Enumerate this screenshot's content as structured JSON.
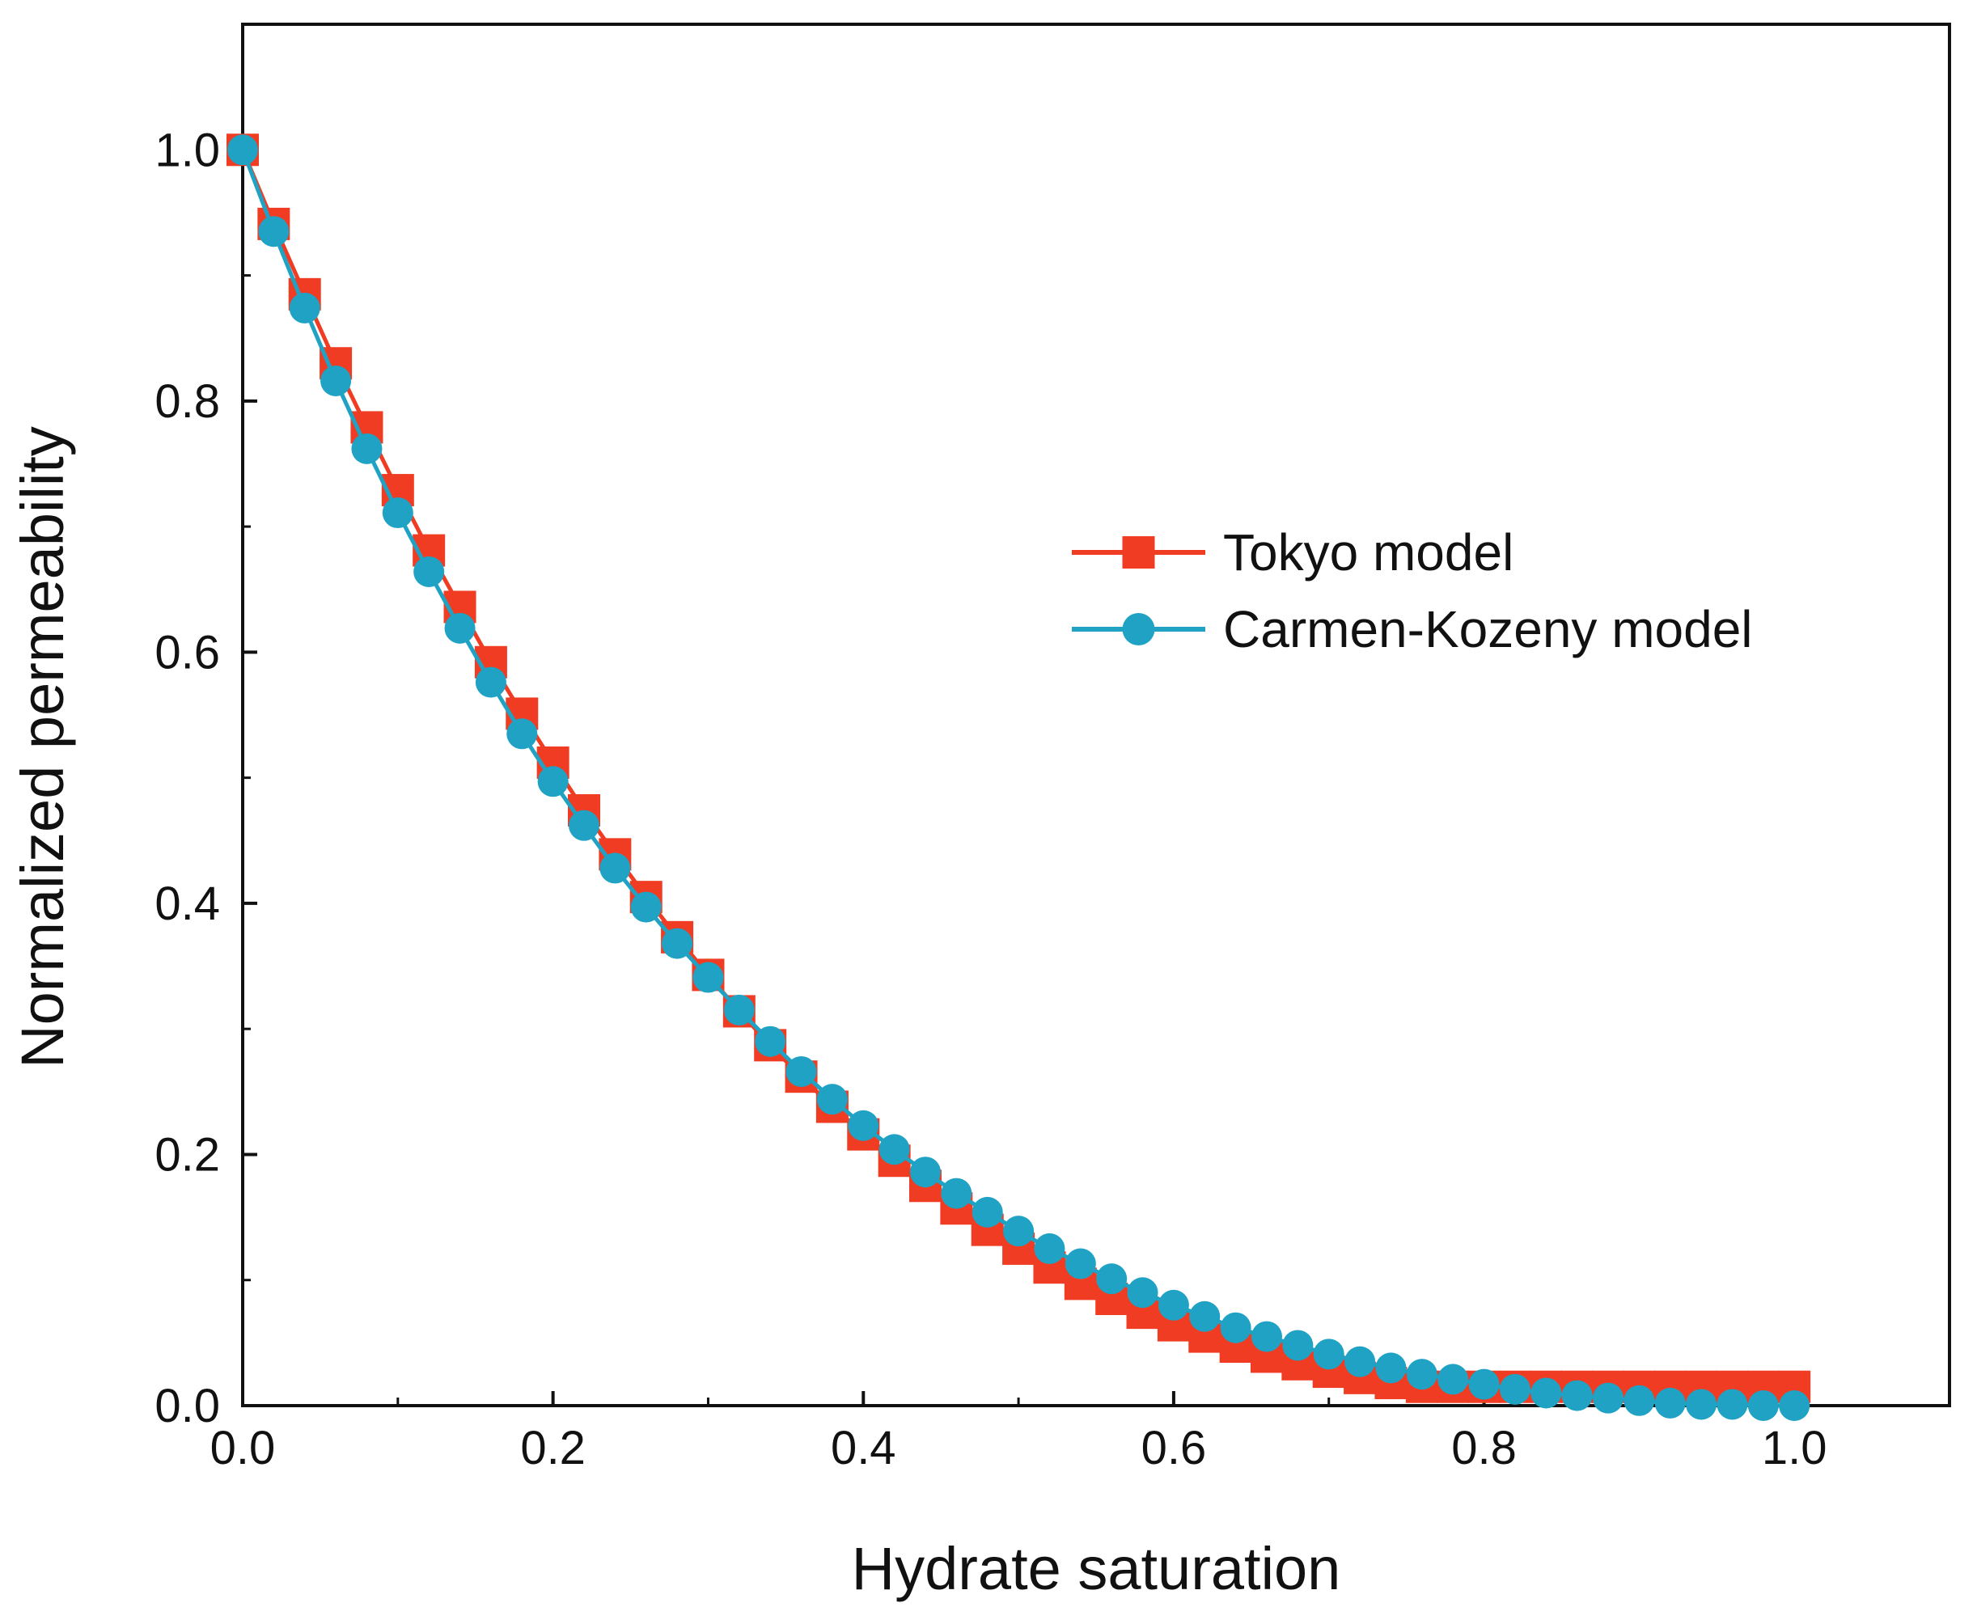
{
  "chart_data": {
    "type": "line",
    "title": "",
    "xlabel": "Hydrate saturation",
    "ylabel": "Normalized permeability",
    "xlim": [
      0.0,
      1.1
    ],
    "ylim": [
      0.0,
      1.1
    ],
    "xticks": [
      "0.0",
      "0.2",
      "0.4",
      "0.6",
      "0.8",
      "1.0"
    ],
    "yticks": [
      "0.0",
      "0.2",
      "0.4",
      "0.6",
      "0.8",
      "1.0"
    ],
    "grid": false,
    "legend_position": "center-right",
    "x": [
      0,
      0.02,
      0.04,
      0.06,
      0.08,
      0.1,
      0.12,
      0.14,
      0.16,
      0.18,
      0.2,
      0.22,
      0.24,
      0.26,
      0.28,
      0.3,
      0.32,
      0.34,
      0.36,
      0.38,
      0.4,
      0.42,
      0.44,
      0.46,
      0.48,
      0.5,
      0.52,
      0.54,
      0.56,
      0.58,
      0.6,
      0.62,
      0.64,
      0.66,
      0.68,
      0.7,
      0.72,
      0.74,
      0.76,
      0.78,
      0.8,
      0.82,
      0.84,
      0.86,
      0.88,
      0.9,
      0.92,
      0.94,
      0.96,
      0.98,
      1.0
    ],
    "series": [
      {
        "name": "Tokyo model",
        "color": "#f03c22",
        "marker": "square",
        "values": [
          1.0,
          0.941,
          0.885,
          0.83,
          0.779,
          0.729,
          0.681,
          0.636,
          0.592,
          0.551,
          0.512,
          0.474,
          0.439,
          0.405,
          0.373,
          0.343,
          0.314,
          0.287,
          0.262,
          0.238,
          0.216,
          0.195,
          0.175,
          0.157,
          0.14,
          0.125,
          0.11,
          0.097,
          0.085,
          0.074,
          0.064,
          0.055,
          0.047,
          0.039,
          0.033,
          0.027,
          0.022,
          0.018,
          0.015,
          0.015,
          0.015,
          0.015,
          0.015,
          0.015,
          0.015,
          0.015,
          0.015,
          0.015,
          0.015,
          0.015,
          0.015
        ]
      },
      {
        "name": "Carmen-Kozeny model",
        "color": "#1fa2c4",
        "marker": "circle",
        "values": [
          1.0,
          0.935,
          0.874,
          0.816,
          0.762,
          0.711,
          0.664,
          0.619,
          0.576,
          0.535,
          0.497,
          0.462,
          0.428,
          0.397,
          0.368,
          0.341,
          0.315,
          0.29,
          0.266,
          0.244,
          0.223,
          0.204,
          0.186,
          0.169,
          0.154,
          0.139,
          0.125,
          0.113,
          0.101,
          0.09,
          0.08,
          0.071,
          0.062,
          0.055,
          0.048,
          0.041,
          0.035,
          0.03,
          0.025,
          0.021,
          0.017,
          0.013,
          0.01,
          0.008,
          0.006,
          0.004,
          0.002,
          0.001,
          0.001,
          0.0,
          0.0
        ]
      }
    ]
  }
}
